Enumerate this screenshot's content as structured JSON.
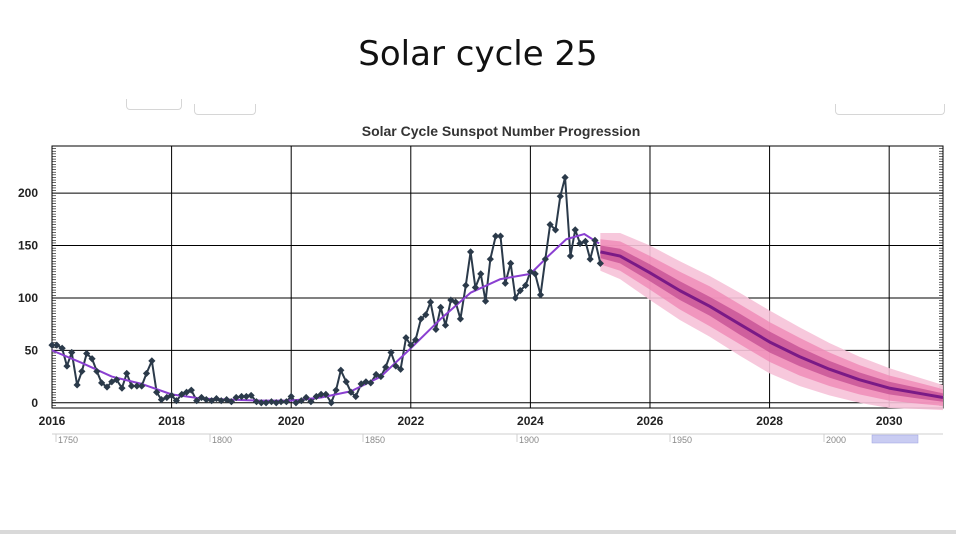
{
  "slide": {
    "title": "Solar cycle 25"
  },
  "chart_data": {
    "type": "line",
    "title": "Solar Cycle Sunspot Number Progression",
    "xlabel": "",
    "ylabel": "",
    "xlim": [
      2016.0,
      2030.9
    ],
    "ylim": [
      -5,
      245
    ],
    "x_ticks": [
      "2016",
      "2018",
      "2020",
      "2022",
      "2024",
      "2026",
      "2028",
      "2030"
    ],
    "y_ticks": [
      "0",
      "50",
      "100",
      "150",
      "200"
    ],
    "navigator_ticks": [
      "1750",
      "1800",
      "1850",
      "1900",
      "1950",
      "2000"
    ],
    "grid": true,
    "legend": "none",
    "colors": {
      "observed": "#2b3a4a",
      "smoothed": "#8a3fd1",
      "predicted": "#7a1a86",
      "band_inner": "#c0478e",
      "band_mid": "#ef86b4",
      "band_outer": "#f6c2d8"
    },
    "series": [
      {
        "type": "monthly",
        "x": [
          2016.0,
          2016.08,
          2016.17,
          2016.25,
          2016.33,
          2016.42,
          2016.5,
          2016.58,
          2016.67,
          2016.75,
          2016.83,
          2016.92,
          2017.0,
          2017.08,
          2017.17,
          2017.25,
          2017.33,
          2017.42,
          2017.5,
          2017.58,
          2017.67,
          2017.75,
          2017.83,
          2017.92,
          2018.0,
          2018.08,
          2018.17,
          2018.25,
          2018.33,
          2018.42,
          2018.5,
          2018.58,
          2018.67,
          2018.75,
          2018.83,
          2018.92,
          2019.0,
          2019.08,
          2019.17,
          2019.25,
          2019.33,
          2019.42,
          2019.5,
          2019.58,
          2019.67,
          2019.75,
          2019.83,
          2019.92,
          2020.0,
          2020.08,
          2020.17,
          2020.25,
          2020.33,
          2020.42,
          2020.5,
          2020.58,
          2020.67,
          2020.75,
          2020.83,
          2020.92,
          2021.0,
          2021.08,
          2021.17,
          2021.25,
          2021.33,
          2021.42,
          2021.5,
          2021.58,
          2021.67,
          2021.75,
          2021.83,
          2021.92,
          2022.0,
          2022.08,
          2022.17,
          2022.25,
          2022.33,
          2022.42,
          2022.5,
          2022.58,
          2022.67,
          2022.75,
          2022.83,
          2022.92,
          2023.0,
          2023.08,
          2023.17,
          2023.25,
          2023.33,
          2023.42,
          2023.5,
          2023.58,
          2023.67,
          2023.75,
          2023.83,
          2023.92,
          2024.0,
          2024.08,
          2024.17,
          2024.25,
          2024.33,
          2024.42,
          2024.5,
          2024.58,
          2024.67,
          2024.75,
          2024.83,
          2024.92,
          2025.0,
          2025.08,
          2025.17
        ],
        "y": [
          55,
          55,
          52,
          35,
          48,
          17,
          30,
          47,
          42,
          30,
          19,
          15,
          20,
          22,
          14,
          28,
          16,
          16,
          16,
          28,
          40,
          10,
          3,
          5,
          7,
          2,
          8,
          10,
          12,
          2,
          5,
          3,
          2,
          4,
          2,
          3,
          1,
          5,
          6,
          6,
          7,
          1,
          0,
          0,
          1,
          0,
          1,
          1,
          6,
          0,
          2,
          5,
          1,
          6,
          8,
          8,
          0,
          12,
          31,
          20,
          10,
          6,
          18,
          20,
          19,
          27,
          25,
          34,
          48,
          35,
          32,
          62,
          55,
          60,
          80,
          84,
          96,
          70,
          91,
          74,
          98,
          96,
          80,
          112,
          144,
          110,
          123,
          97,
          137,
          159,
          159,
          114,
          133,
          100,
          107,
          112,
          125,
          123,
          103,
          137,
          170,
          165,
          197,
          215,
          140,
          165,
          152,
          154,
          137,
          155,
          133
        ]
      },
      {
        "type": "smoothed",
        "x": [
          2016.0,
          2016.5,
          2017.0,
          2017.5,
          2018.0,
          2018.5,
          2019.0,
          2019.5,
          2020.0,
          2020.5,
          2021.0,
          2021.5,
          2022.0,
          2022.5,
          2023.0,
          2023.5,
          2024.0,
          2024.3,
          2024.6,
          2024.9,
          2025.15
        ],
        "y": [
          50,
          38,
          25,
          18,
          8,
          4,
          3,
          2,
          2,
          5,
          11,
          25,
          52,
          80,
          105,
          118,
          123,
          140,
          156,
          161,
          152
        ]
      },
      {
        "type": "predicted",
        "x": [
          2025.17,
          2025.5,
          2026.0,
          2026.5,
          2027.0,
          2027.5,
          2028.0,
          2028.5,
          2029.0,
          2029.5,
          2030.0,
          2030.5,
          2030.9
        ],
        "y": [
          144,
          140,
          124,
          107,
          92,
          75,
          58,
          44,
          32,
          22,
          14,
          9,
          5
        ],
        "band_inner": [
          6,
          7,
          8,
          9,
          9,
          10,
          10,
          9,
          8,
          7,
          6,
          5,
          4
        ],
        "band_mid": [
          12,
          14,
          16,
          18,
          19,
          19,
          19,
          18,
          16,
          14,
          12,
          10,
          8
        ],
        "band_outer": [
          18,
          22,
          26,
          28,
          29,
          30,
          30,
          28,
          25,
          22,
          19,
          15,
          12
        ]
      }
    ]
  }
}
